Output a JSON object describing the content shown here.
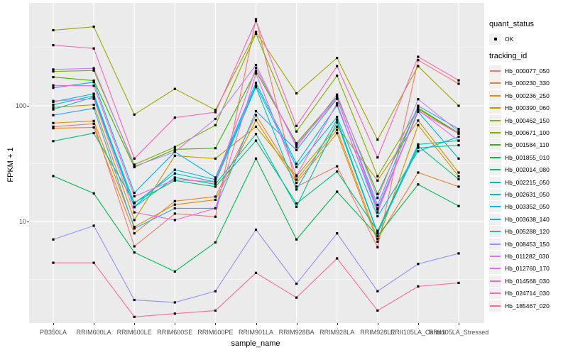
{
  "chart_data": {
    "type": "line",
    "title": "",
    "xlabel": "sample_name",
    "ylabel": "FPKM + 1",
    "y_scale": "log10",
    "ylim": [
      1.33,
      713
    ],
    "grid": true,
    "legend_position": "right",
    "panel_bg": "#EBEBEB",
    "grid_color": "#FFFFFF",
    "point_color": "#000000",
    "tick_text_color": "#4D4D4D",
    "legend_key_bg": "#F0F0F0",
    "y_ticks": [
      {
        "label": "100",
        "value": 100
      },
      {
        "label": "10",
        "value": 10
      }
    ],
    "minor_gridlines": [
      316.23,
      31.623,
      3.1623
    ],
    "major_gridlines": [
      100,
      10
    ],
    "categories": [
      "PB350LA",
      "RRIM600LA",
      "RRIM600LE",
      "RRIM600SE",
      "RRIM600PE",
      "RRIM901LA",
      "RRIM928BA",
      "RRIM928LA",
      "RRIM928LE",
      "RRII105LA_Control",
      "RRII105LA_Stressed"
    ],
    "series": [
      {
        "name": "Hb_000077_050",
        "color": "#F8766D",
        "values": [
          66,
          70,
          6.1,
          11.7,
          11,
          560,
          20,
          30,
          6,
          248,
          155
        ]
      },
      {
        "name": "Hb_000230_330",
        "color": "#EA8331",
        "values": [
          64,
          65,
          7.9,
          15,
          16.4,
          83,
          23,
          62,
          7.1,
          26.5,
          20
        ]
      },
      {
        "name": "Hb_000236_250",
        "color": "#D89000",
        "values": [
          71,
          74,
          9,
          14,
          15.4,
          75,
          21.6,
          58,
          6.7,
          68,
          24.6
        ]
      },
      {
        "name": "Hb_000390_060",
        "color": "#C09B00",
        "values": [
          97,
          102,
          10.3,
          37,
          35,
          66,
          24.6,
          66,
          22.6,
          74.5,
          26.5
        ]
      },
      {
        "name": "Hb_000462_150",
        "color": "#A3A500",
        "values": [
          450,
          482,
          84,
          140,
          92,
          434,
          128,
          259,
          51,
          220,
          100
        ]
      },
      {
        "name": "Hb_000671_100",
        "color": "#7CAE00",
        "values": [
          198,
          202,
          31,
          44,
          68,
          420,
          60,
          182,
          24.6,
          94,
          57.5
        ]
      },
      {
        "name": "Hb_001584_110",
        "color": "#39B600",
        "values": [
          177,
          165,
          29.5,
          42,
          43,
          199,
          47.5,
          120,
          17.3,
          96,
          58
        ]
      },
      {
        "name": "Hb_001855_010",
        "color": "#00BB4E",
        "values": [
          24.7,
          17.5,
          5.4,
          3.7,
          6.6,
          35,
          7,
          18.1,
          7.5,
          20.9,
          13.6
        ]
      },
      {
        "name": "Hb_002014_080",
        "color": "#00BF7D",
        "values": [
          49.5,
          58,
          14.6,
          22.6,
          20,
          50,
          14.3,
          27,
          8.3,
          45,
          23.2
        ]
      },
      {
        "name": "Hb_002215_050",
        "color": "#00C1A3",
        "values": [
          93,
          119,
          13.3,
          24,
          21,
          57,
          13.4,
          72,
          7.9,
          46.4,
          50
        ]
      },
      {
        "name": "Hb_002631_050",
        "color": "#00BFC4",
        "values": [
          102,
          122,
          14.4,
          26,
          22,
          145,
          18.9,
          76,
          8,
          43.3,
          45.6
        ]
      },
      {
        "name": "Hb_003352_050",
        "color": "#00BAE0",
        "values": [
          108,
          127,
          13.4,
          28,
          23,
          150,
          29.6,
          80,
          11.1,
          40.5,
          54
        ]
      },
      {
        "name": "Hb_003638_140",
        "color": "#00B0F6",
        "values": [
          143,
          160,
          17.7,
          40,
          24,
          158,
          31.6,
          101,
          12.7,
          88.7,
          35
        ]
      },
      {
        "name": "Hb_005288_120",
        "color": "#35A2FF",
        "values": [
          83,
          95,
          8.7,
          13,
          13,
          90,
          41.5,
          115,
          13.9,
          100,
          63
        ]
      },
      {
        "name": "Hb_008453_150",
        "color": "#9590FF",
        "values": [
          7,
          9.2,
          2.1,
          2,
          2.5,
          8.5,
          2.9,
          7.9,
          2.5,
          4.3,
          5.3
        ]
      },
      {
        "name": "Hb_011282_030",
        "color": "#C77CFF",
        "values": [
          206,
          211,
          30,
          40,
          77,
          225,
          44,
          125,
          16,
          114,
          60
        ]
      },
      {
        "name": "Hb_012760_170",
        "color": "#E76BF3",
        "values": [
          110,
          115,
          12,
          10.3,
          13,
          190,
          25,
          105,
          12,
          92,
          50
        ]
      },
      {
        "name": "Hb_014568_030",
        "color": "#FA62DB",
        "values": [
          150,
          149,
          16.5,
          23,
          22,
          212,
          46,
          116,
          13,
          90,
          57.5
        ]
      },
      {
        "name": "Hb_024714_030",
        "color": "#FF62BC",
        "values": [
          334,
          313,
          35,
          79,
          88,
          540,
          67,
          220,
          35.8,
          265,
          166
        ]
      },
      {
        "name": "Hb_185467_020",
        "color": "#FF6A98",
        "values": [
          4.4,
          4.4,
          1.5,
          1.6,
          1.7,
          3.6,
          2.2,
          4.8,
          1.7,
          2.75,
          2.95
        ]
      }
    ],
    "legend": {
      "quant_status_title": "quant_status",
      "quant_status_item": "OK",
      "tracking_title": "tracking_id"
    }
  }
}
